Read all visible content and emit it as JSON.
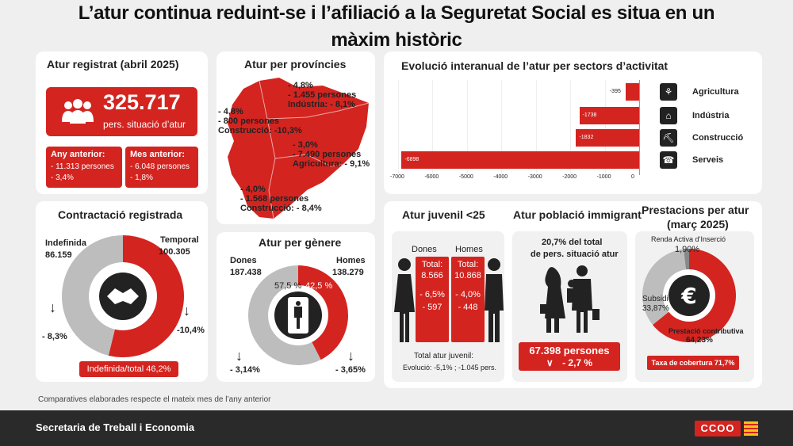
{
  "title_line1": "L’atur continua reduint-se i l’afiliació a la Seguretat Social es situa en un",
  "title_line2": "màxim històric",
  "registrat": {
    "title": "Atur registrat (abril 2025)",
    "value": "325.717",
    "subtitle": "pers. situació d’atur",
    "any_title": "Any anterior:",
    "any_line1": "- 11.313 persones",
    "any_line2": "- 3,4%",
    "mes_title": "Mes anterior:",
    "mes_line1": "- 6.048 persones",
    "mes_line2": "- 1,8%"
  },
  "provincies": {
    "title": "Atur per províncies",
    "girona": [
      "- 4,8%",
      "- 1.455 persones",
      "Indústria: - 8,1%"
    ],
    "lleida": [
      "- 4,8%",
      "- 800 persones",
      "Construcció: -10,3%"
    ],
    "barcelona": [
      "- 3,0%",
      "- 7.490 persones",
      "Agricultura: - 9,1%"
    ],
    "tarragona": [
      "- 4,0%",
      "- 1.568 persones",
      "Construcció: - 8,4%"
    ]
  },
  "sectors": {
    "title": "Evolució interanual de l’atur per sectors d’activitat",
    "ticks": [
      "-7000",
      "-6000",
      "-5000",
      "-4000",
      "-3000",
      "-2000",
      "-1000",
      "0"
    ],
    "items": [
      {
        "name": "Agricultura",
        "label": "-395",
        "icon": "wheat-icon"
      },
      {
        "name": "Indústria",
        "label": "-1738",
        "icon": "factory-icon"
      },
      {
        "name": "Construcció",
        "label": "-1832",
        "icon": "worker-icon"
      },
      {
        "name": "Serveis",
        "label": "-6898",
        "icon": "service-icon"
      }
    ]
  },
  "chart_data": {
    "type": "bar",
    "title": "Evolució interanual de l’atur per sectors d’activitat",
    "categories": [
      "Agricultura",
      "Indústria",
      "Construcció",
      "Serveis"
    ],
    "values": [
      -395,
      -1738,
      -1832,
      -6898
    ],
    "xlim": [
      -7000,
      0
    ]
  },
  "contractacio": {
    "title": "Contractació registrada",
    "indef_label": "Indefinida",
    "indef_value": "86.159",
    "temp_label": "Temporal",
    "temp_value": "100.305",
    "indef_change": "- 8,3%",
    "temp_change": "-10,4%",
    "badge": "Indefinida/total  46,2%",
    "share_indefinida": 46.2
  },
  "genere": {
    "title": "Atur per gènere",
    "dones_label": "Dones",
    "dones_value": "187.438",
    "homes_label": "Homes",
    "homes_value": "138.279",
    "dones_pct": "57,5 %",
    "homes_pct": "42,5 %",
    "dones_change": "- 3,14%",
    "homes_change": "- 3,65%",
    "share_homes": 42.5
  },
  "juvenil": {
    "title": "Atur juvenil <25",
    "dones_label": "Dones",
    "homes_label": "Homes",
    "dones_total_label": "Total:",
    "dones_total": "8.566",
    "dones_pct": "- 6,5%",
    "dones_n": "- 597",
    "homes_total_label": "Total:",
    "homes_total": "10.868",
    "homes_pct": "- 4,0%",
    "homes_n": "- 448",
    "footer1": "Total atur juvenil:",
    "footer2": "Evolució: -5,1% ;  -1.045 pers."
  },
  "immigrant": {
    "title": "Atur població immigrant",
    "text1": "20,7% del total",
    "text2": "de pers. situació atur",
    "value": "67.398 persones",
    "change": "- 2,7 %"
  },
  "prestacions": {
    "title1": "Prestacions per atur",
    "title2": "(març 2025)",
    "rai_label": "Renda Activa d’Inserció",
    "rai_value": "1,90%",
    "subsidi_label": "Subsidi",
    "subsidi_value": "33,87%",
    "contrib_label": "Prestació contributiva",
    "contrib_value": "64,23%",
    "badge": "Taxa de cobertura 71,7%",
    "shares": [
      64.23,
      33.87,
      1.9
    ]
  },
  "note": "Comparatives elaborades respecte el mateix mes de l’any anterior",
  "footer": "Secretaria de Treball i Economia",
  "logo_text": "CCOO",
  "colors": {
    "red": "#d42420",
    "grey": "#bdbdbd",
    "dark": "#222222"
  }
}
